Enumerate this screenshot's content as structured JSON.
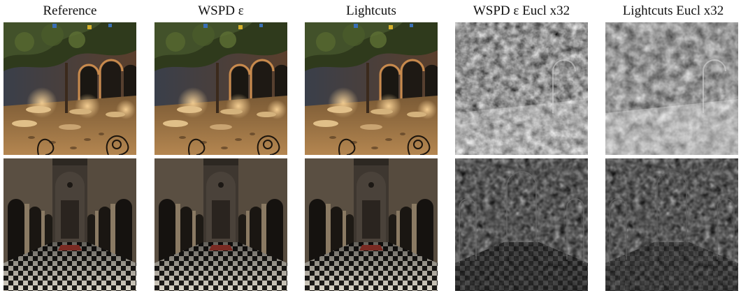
{
  "figure": {
    "columns": [
      {
        "title": "Reference",
        "kind": "render"
      },
      {
        "title": "WSPD ε",
        "kind": "render"
      },
      {
        "title": "Lightcuts",
        "kind": "render"
      },
      {
        "title": "WSPD ε Eucl x32",
        "kind": "error"
      },
      {
        "title": "Lightcuts Eucl x32",
        "kind": "error"
      }
    ],
    "rows": [
      {
        "scene": "courtyard-cafe"
      },
      {
        "scene": "cathedral-nave"
      }
    ]
  }
}
